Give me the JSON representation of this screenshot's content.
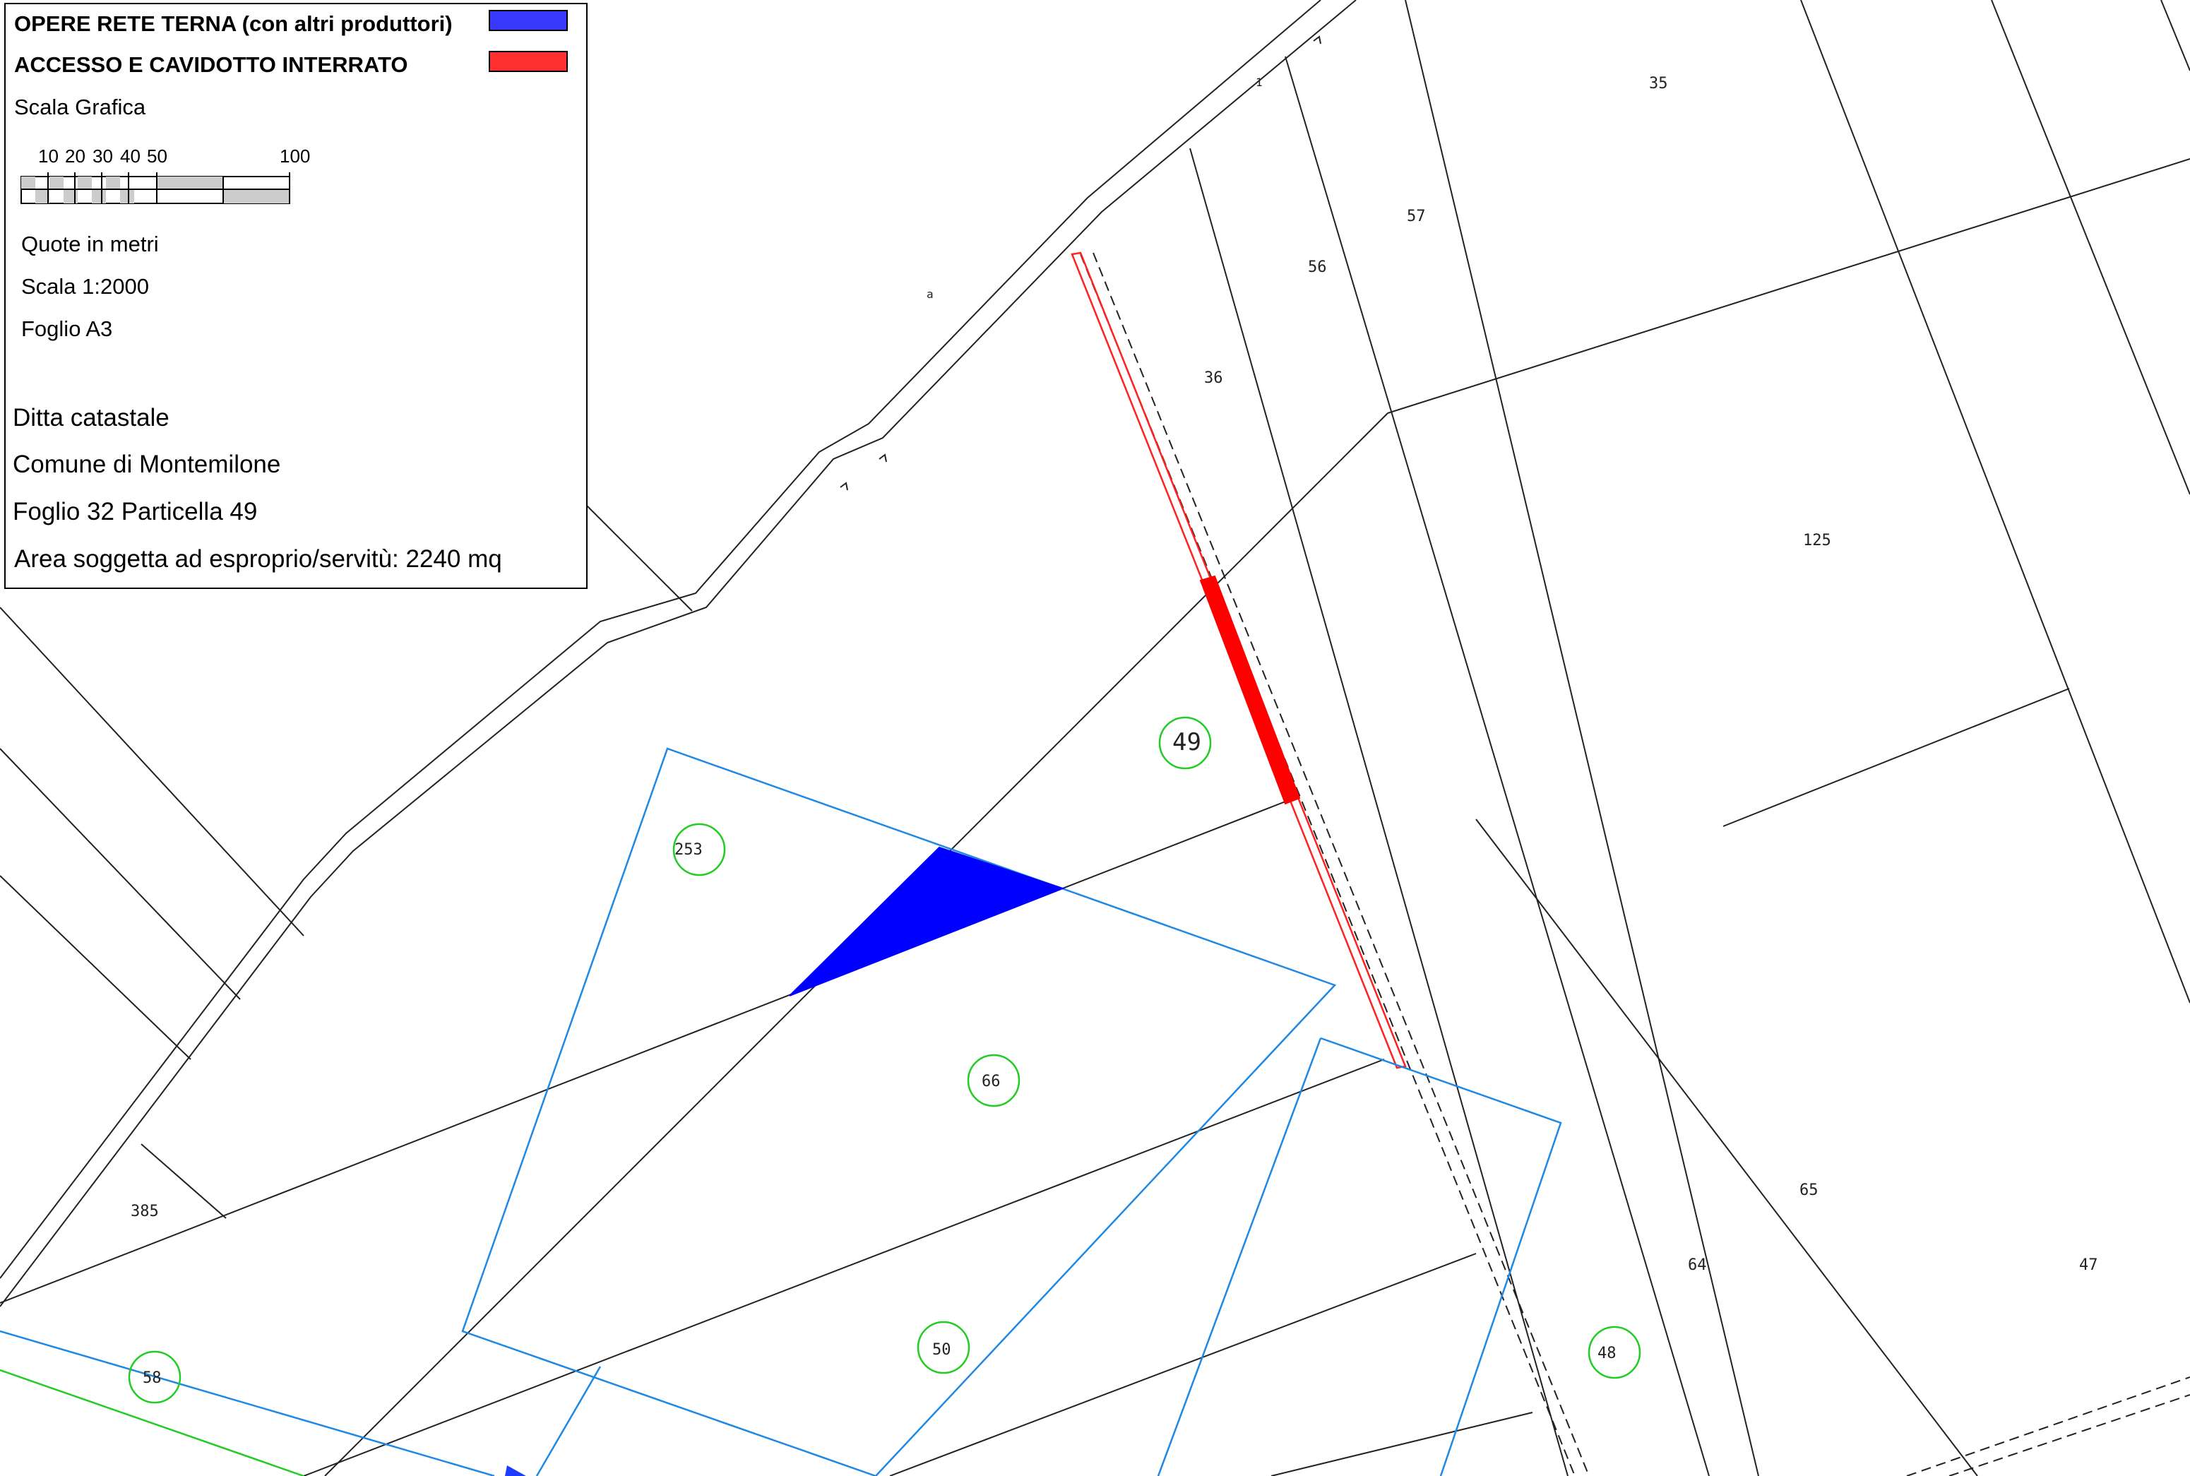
{
  "legend": {
    "opere_label": "OPERE RETE TERNA (con altri produttori)",
    "opere_color": "#3a3aff",
    "accesso_label": "ACCESSO E CAVIDOTTO INTERRATO",
    "accesso_color": "#ff3030",
    "scala_grafica": "Scala Grafica",
    "scale_ticks": [
      "10",
      "20",
      "30",
      "40",
      "50",
      "100"
    ],
    "quote": "Quote in metri",
    "scala": "Scala 1:2000",
    "foglio": "Foglio A3",
    "ditta": "Ditta catastale",
    "comune": "Comune di Montemilone",
    "foglio_particella": "Foglio 32 Particella 49",
    "area": "Area soggetta ad esproprio/servitù: 2240 mq"
  },
  "parcels": {
    "p35": "35",
    "p57": "57",
    "p56": "56",
    "p36": "36",
    "p125": "125",
    "p49": "49",
    "p253": "253",
    "p66": "66",
    "p65": "65",
    "p64": "64",
    "p47": "47",
    "p385": "385",
    "p58": "58",
    "p50": "50",
    "p48": "48",
    "a": "a",
    "one": "1"
  },
  "colors": {
    "parcel_line": "#222222",
    "blue_outline": "#1e88e5",
    "highlight_circle": "#22cc22",
    "green_line": "#22cc22"
  }
}
